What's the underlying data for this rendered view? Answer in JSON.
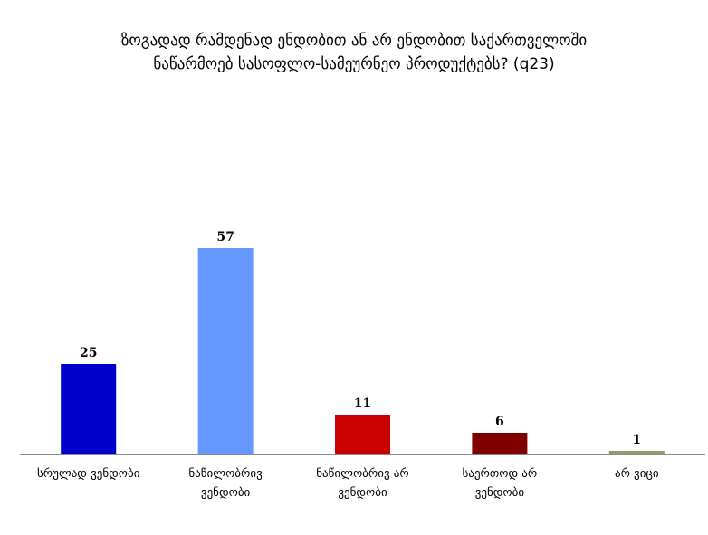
{
  "chart_data": {
    "type": "bar",
    "title_lines": [
      "ზოგადად რამდენად ენდობით ან არ ენდობით საქართველოში",
      "ნაწარმოებ სასოფლო-სამეურნეო პროდუქტებს? (q23)"
    ],
    "categories": [
      [
        "სრულად ვენდობი"
      ],
      [
        "ნაწილობრივ",
        "ვენდობი"
      ],
      [
        "ნაწილობრივ არ",
        "ვენდობი"
      ],
      [
        "საერთოდ არ",
        "ვენდობი"
      ],
      [
        "არ ვიცი"
      ]
    ],
    "values": [
      25,
      57,
      11,
      6,
      1
    ],
    "colors": [
      "#0000CC",
      "#6699FF",
      "#CC0000",
      "#800000",
      "#999966"
    ],
    "ylim": [
      0,
      70
    ],
    "grid": false,
    "legend": "none"
  }
}
